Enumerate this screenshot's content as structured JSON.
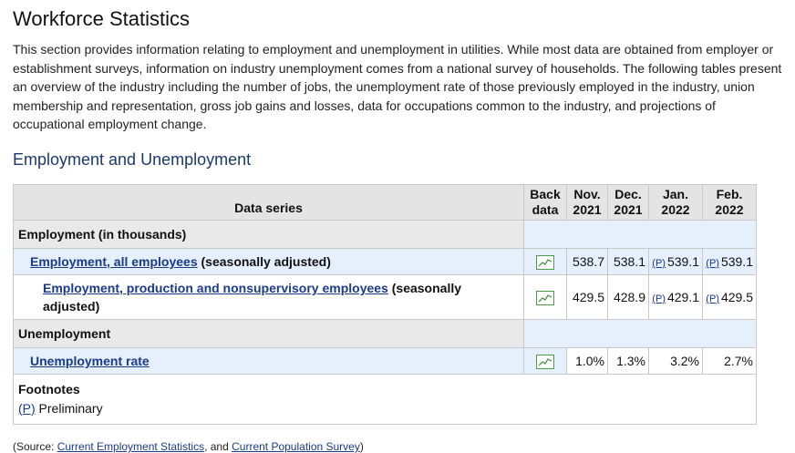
{
  "page": {
    "title": "Workforce Statistics",
    "intro": "This section provides information relating to employment and unemployment in utilities. While most data are obtained from employer or establishment surveys, information on industry unemployment comes from a national survey of households. The following tables present an overview of the industry including the number of jobs, the unemployment rate of those previously employed in the industry, union membership and representation, gross job gains and losses, data for occupations common to the industry, and projections of occupational employment change.",
    "section_title": "Employment and Unemployment"
  },
  "table": {
    "headers": {
      "data_series": "Data series",
      "back_data": [
        "Back",
        "data"
      ],
      "cols": [
        [
          "Nov.",
          "2021"
        ],
        [
          "Dec.",
          "2021"
        ],
        [
          "Jan.",
          "2022"
        ],
        [
          "Feb.",
          "2022"
        ]
      ]
    },
    "sections": [
      {
        "label": "Employment (in thousands)",
        "rows": [
          {
            "link": "Employment, all employees",
            "suffix": " (seasonally adjusted)",
            "values": [
              {
                "prelim": "",
                "value": "538.7"
              },
              {
                "prelim": "",
                "value": "538.1"
              },
              {
                "prelim": "(P)",
                "value": "539.1"
              },
              {
                "prelim": "(P)",
                "value": "539.1"
              }
            ]
          },
          {
            "link": "Employment, production and nonsupervisory employees",
            "suffix": " (seasonally adjusted)",
            "values": [
              {
                "prelim": "",
                "value": "429.5"
              },
              {
                "prelim": "",
                "value": "428.9"
              },
              {
                "prelim": "(P)",
                "value": "429.1"
              },
              {
                "prelim": "(P)",
                "value": "429.5"
              }
            ]
          }
        ]
      },
      {
        "label": "Unemployment",
        "rows": [
          {
            "link": "Unemployment rate",
            "suffix": "",
            "values": [
              {
                "prelim": "",
                "value": "1.0%"
              },
              {
                "prelim": "",
                "value": "1.3%"
              },
              {
                "prelim": "",
                "value": "3.2%"
              },
              {
                "prelim": "",
                "value": "2.7%"
              }
            ]
          }
        ]
      }
    ],
    "footnotes": {
      "title": "Footnotes",
      "p_marker": "(P)",
      "p_text": " Preliminary"
    }
  },
  "source": {
    "prefix": "(Source: ",
    "link1": "Current Employment Statistics",
    "middle": ", and ",
    "link2": "Current Population Survey",
    "suffix": ")"
  },
  "icons": {
    "back_data": "line-chart-icon"
  },
  "colors": {
    "link": "#1a3a8c",
    "heading": "#1a3a6b",
    "highlight_row": "#e6f0fc",
    "header_bg": "#e4e4e4",
    "chart_icon": "#4a9b4a"
  }
}
